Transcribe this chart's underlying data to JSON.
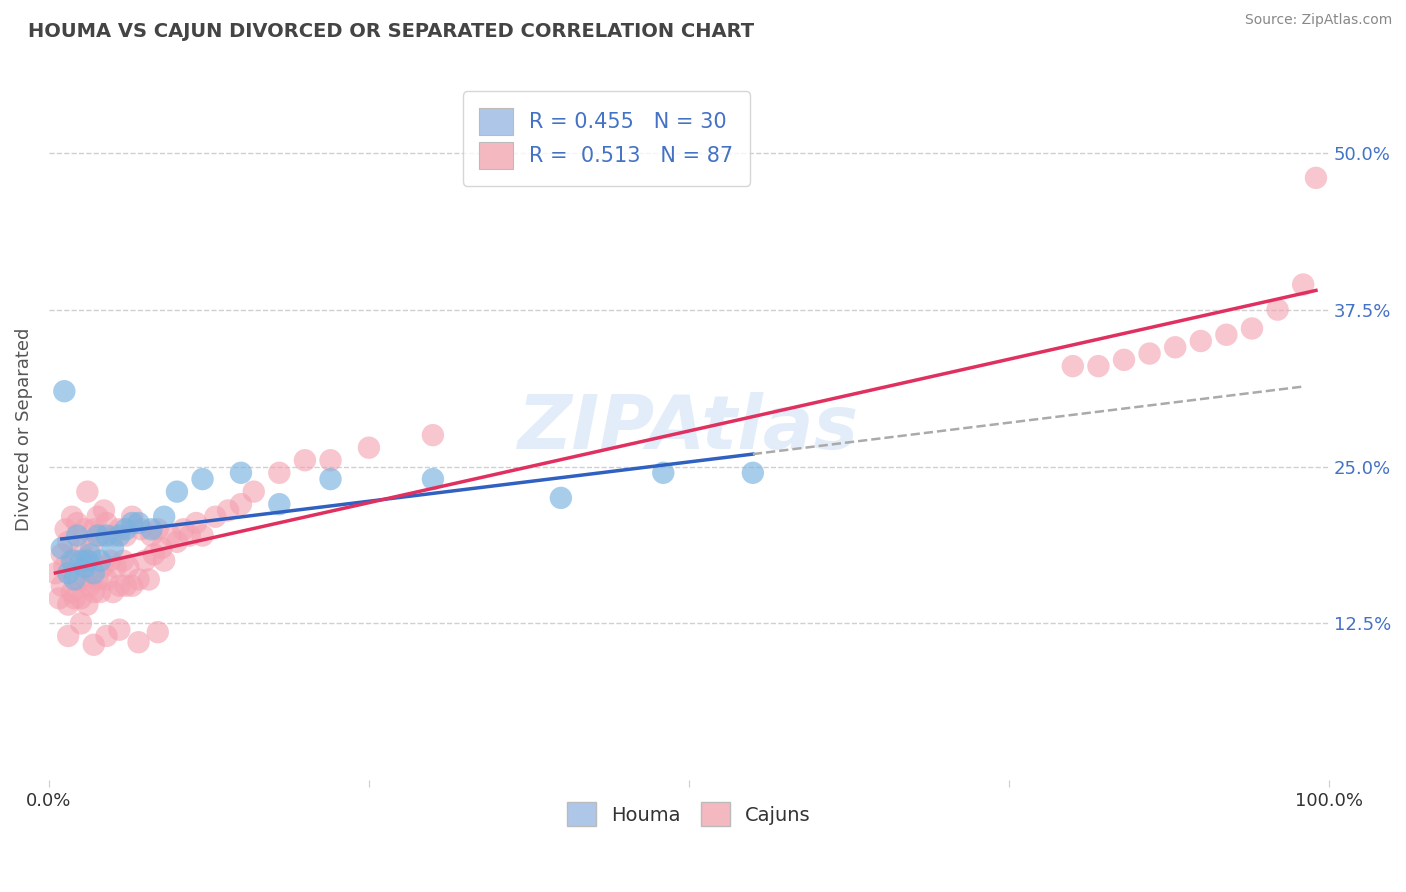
{
  "title": "HOUMA VS CAJUN DIVORCED OR SEPARATED CORRELATION CHART",
  "source": "Source: ZipAtlas.com",
  "ylabel": "Divorced or Separated",
  "xlim": [
    0,
    1.0
  ],
  "ylim": [
    0.0,
    0.56
  ],
  "xticks": [
    0.0,
    0.25,
    0.5,
    0.75,
    1.0
  ],
  "xtick_labels": [
    "0.0%",
    "",
    "",
    "",
    "100.0%"
  ],
  "ytick_positions": [
    0.125,
    0.25,
    0.375,
    0.5
  ],
  "ytick_labels_right": [
    "12.5%",
    "25.0%",
    "37.5%",
    "50.0%"
  ],
  "grid_color": "#d0d0d0",
  "background_color": "#ffffff",
  "houma_color": "#7ab3e0",
  "cajun_color": "#f4a0b0",
  "houma_line_color": "#3060c0",
  "cajun_line_color": "#e03060",
  "dash_line_color": "#aaaaaa",
  "title_color": "#444444",
  "title_fontsize": 14,
  "tick_color_right": "#4472c4",
  "legend_box_color_houma": "#aec6e8",
  "legend_box_color_cajun": "#f4b8c1",
  "legend_text_color": "#4472c4",
  "watermark_color": "#c8ddf5",
  "houma_R": 0.455,
  "houma_N": 30,
  "cajun_R": 0.513,
  "cajun_N": 87,
  "houma_x": [
    0.01,
    0.012,
    0.015,
    0.018,
    0.02,
    0.022,
    0.025,
    0.028,
    0.03,
    0.032,
    0.035,
    0.038,
    0.04,
    0.045,
    0.05,
    0.055,
    0.06,
    0.065,
    0.07,
    0.08,
    0.09,
    0.1,
    0.12,
    0.15,
    0.18,
    0.22,
    0.3,
    0.4,
    0.48,
    0.55
  ],
  "houma_y": [
    0.185,
    0.31,
    0.165,
    0.175,
    0.16,
    0.195,
    0.175,
    0.17,
    0.175,
    0.18,
    0.165,
    0.195,
    0.175,
    0.195,
    0.185,
    0.195,
    0.2,
    0.205,
    0.205,
    0.2,
    0.21,
    0.23,
    0.24,
    0.245,
    0.22,
    0.24,
    0.24,
    0.225,
    0.245,
    0.245
  ],
  "cajun_x": [
    0.005,
    0.008,
    0.01,
    0.01,
    0.012,
    0.013,
    0.015,
    0.015,
    0.018,
    0.018,
    0.02,
    0.02,
    0.022,
    0.023,
    0.025,
    0.025,
    0.028,
    0.028,
    0.03,
    0.03,
    0.03,
    0.032,
    0.033,
    0.035,
    0.035,
    0.038,
    0.038,
    0.04,
    0.04,
    0.042,
    0.043,
    0.045,
    0.045,
    0.048,
    0.05,
    0.05,
    0.052,
    0.055,
    0.055,
    0.058,
    0.06,
    0.06,
    0.062,
    0.065,
    0.065,
    0.07,
    0.072,
    0.075,
    0.078,
    0.08,
    0.082,
    0.085,
    0.088,
    0.09,
    0.095,
    0.1,
    0.105,
    0.11,
    0.115,
    0.12,
    0.13,
    0.14,
    0.15,
    0.16,
    0.18,
    0.2,
    0.22,
    0.25,
    0.3,
    0.8,
    0.82,
    0.84,
    0.86,
    0.88,
    0.9,
    0.92,
    0.94,
    0.96,
    0.98,
    0.99,
    0.015,
    0.025,
    0.035,
    0.045,
    0.055,
    0.07,
    0.085
  ],
  "cajun_y": [
    0.165,
    0.145,
    0.18,
    0.155,
    0.17,
    0.2,
    0.14,
    0.19,
    0.15,
    0.21,
    0.145,
    0.175,
    0.205,
    0.16,
    0.145,
    0.185,
    0.16,
    0.2,
    0.14,
    0.175,
    0.23,
    0.155,
    0.185,
    0.15,
    0.2,
    0.16,
    0.21,
    0.15,
    0.195,
    0.17,
    0.215,
    0.16,
    0.205,
    0.175,
    0.15,
    0.195,
    0.17,
    0.155,
    0.2,
    0.175,
    0.155,
    0.195,
    0.17,
    0.155,
    0.21,
    0.16,
    0.2,
    0.175,
    0.16,
    0.195,
    0.18,
    0.2,
    0.185,
    0.175,
    0.195,
    0.19,
    0.2,
    0.195,
    0.205,
    0.195,
    0.21,
    0.215,
    0.22,
    0.23,
    0.245,
    0.255,
    0.255,
    0.265,
    0.275,
    0.33,
    0.33,
    0.335,
    0.34,
    0.345,
    0.35,
    0.355,
    0.36,
    0.375,
    0.395,
    0.48,
    0.115,
    0.125,
    0.108,
    0.115,
    0.12,
    0.11,
    0.118
  ]
}
